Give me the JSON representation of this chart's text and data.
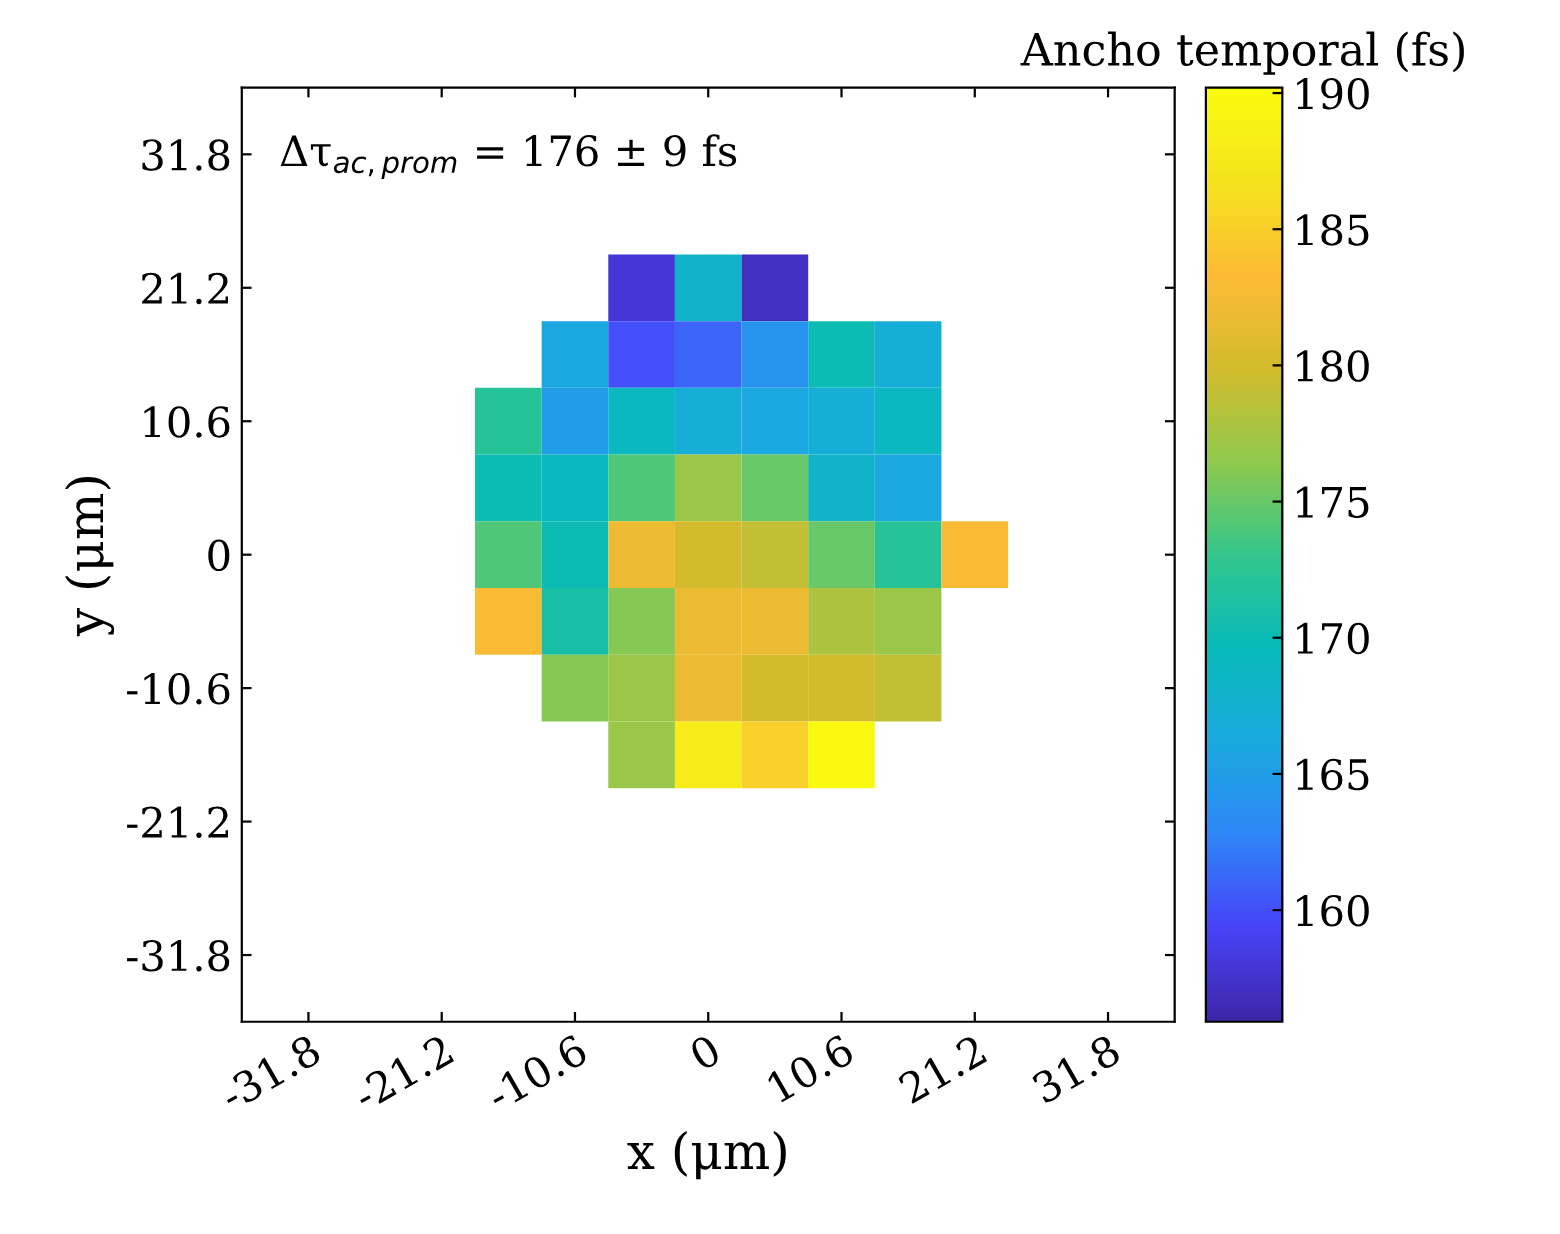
{
  "chart_data": {
    "type": "heatmap",
    "annotations": [
      "Δτ$_{ac,prom}$ = 176 ± 9 fs"
    ],
    "xlabel": "x (μm)",
    "ylabel": "y (μm)",
    "clabel": "Ancho temporal (fs)",
    "x": [
      -15.9,
      -10.6,
      -5.3,
      0,
      5.3,
      10.6,
      15.9,
      21.2
    ],
    "y": [
      21.2,
      15.9,
      10.6,
      5.3,
      0,
      -5.3,
      -10.6,
      -15.9
    ],
    "cells": [
      [
        null,
        null,
        158,
        168,
        157,
        null,
        null,
        null
      ],
      [
        null,
        166,
        160,
        161,
        164,
        170,
        167,
        null
      ],
      [
        172,
        165,
        169,
        167,
        166,
        167,
        169,
        null
      ],
      [
        170,
        169,
        174,
        177,
        175,
        168,
        166,
        null
      ],
      [
        174,
        170,
        182,
        180,
        179,
        175,
        172,
        183
      ],
      [
        183,
        171,
        176,
        182,
        182,
        178,
        177,
        null
      ],
      [
        null,
        176,
        177,
        182,
        180,
        180,
        179,
        null
      ],
      [
        null,
        null,
        177,
        188,
        185,
        190,
        null,
        null
      ]
    ],
    "xlim": [
      -37.1,
      37.1
    ],
    "ylim": [
      -37.1,
      37.1
    ],
    "xticks": [
      -31.8,
      -21.2,
      -10.6,
      0,
      10.6,
      21.2,
      31.8
    ],
    "yticks": [
      -31.8,
      -21.2,
      -10.6,
      0,
      10.6,
      21.2,
      31.8
    ],
    "clim": [
      155.9,
      190.2
    ],
    "cticks": [
      160,
      165,
      170,
      175,
      180,
      185,
      190
    ],
    "grid": false
  }
}
